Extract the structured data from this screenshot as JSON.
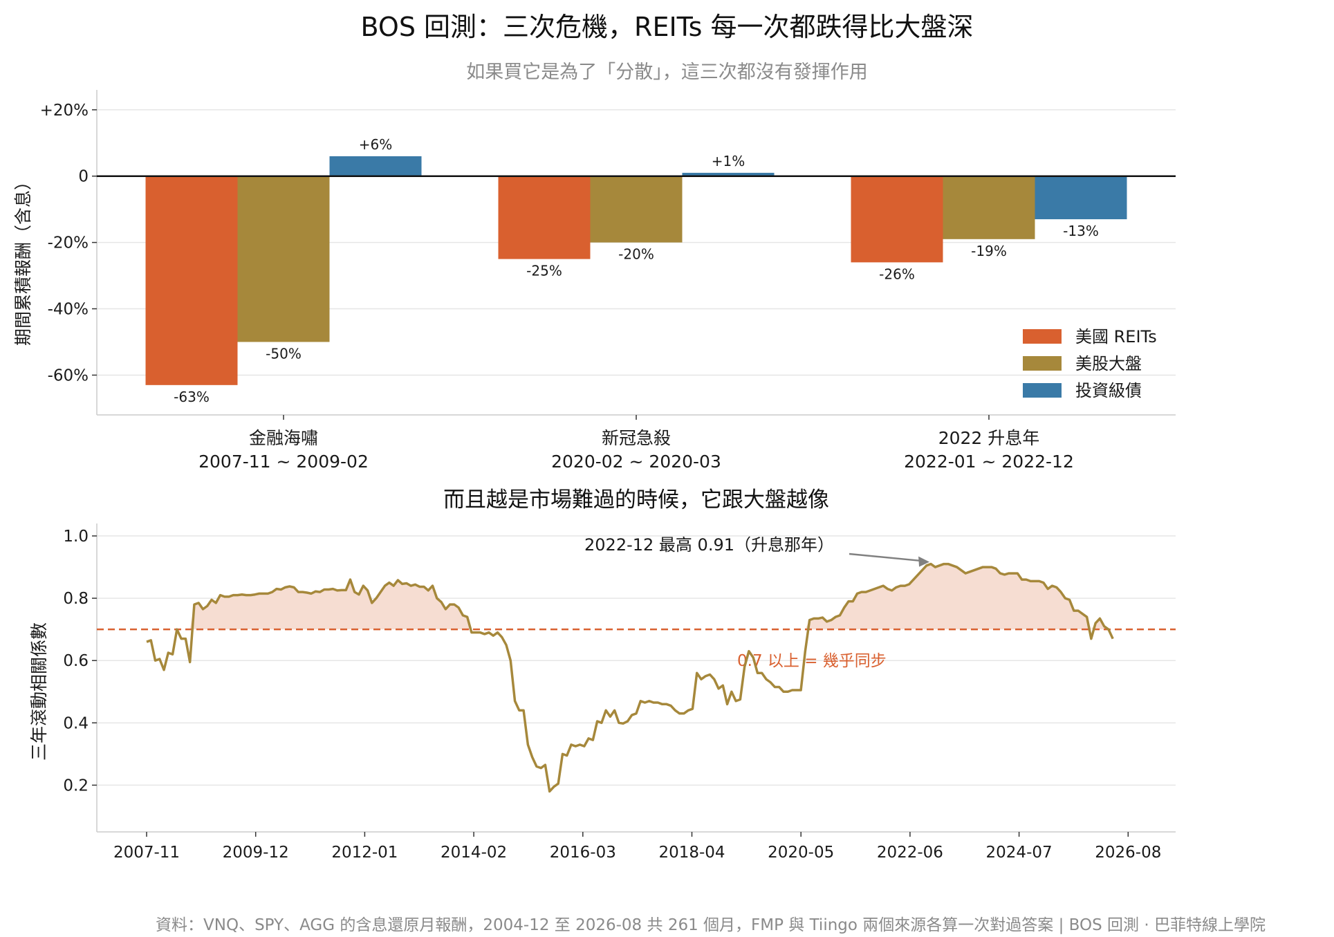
{
  "title": "BOS 回測：三次危機，REITs 每一次都跌得比大盤深",
  "subtitle": "如果買它是為了「分散」，這三次都沒有發揮作用",
  "footer": "資料：VNQ、SPY、AGG 的含息還原月報酬，2004-12 至 2026-08 共 261 個月，FMP 與 Tiingo 兩個來源各算一次對過答案 | BOS 回測 ·   巴菲特線上學院",
  "chart_data": [
    {
      "type": "bar",
      "ylabel": "期間累積報酬（含息）",
      "ylim": [
        -72,
        26
      ],
      "yticks": [
        20,
        0,
        -20,
        -40,
        -60
      ],
      "ytick_labels": [
        "+20%",
        "0",
        "-20%",
        "-40%",
        "-60%"
      ],
      "categories": [
        {
          "name": "金融海嘯",
          "period": "2007-11 ~ 2009-02"
        },
        {
          "name": "新冠急殺",
          "period": "2020-02 ~ 2020-03"
        },
        {
          "name": "2022 升息年",
          "period": "2022-01 ~ 2022-12"
        }
      ],
      "series": [
        {
          "name": "美國 REITs",
          "color": "#d9602f",
          "values": [
            -63,
            -25,
            -26
          ],
          "labels": [
            "-63%",
            "-25%",
            "-26%"
          ]
        },
        {
          "name": "美股大盤",
          "color": "#a6883b",
          "values": [
            -50,
            -20,
            -19
          ],
          "labels": [
            "-50%",
            "-20%",
            "-19%"
          ]
        },
        {
          "name": "投資級債",
          "color": "#3a7aa7",
          "values": [
            6,
            1,
            -13
          ],
          "labels": [
            "+6%",
            "+1%",
            "-13%"
          ]
        }
      ],
      "legend_position": "lower-right",
      "grid": true
    },
    {
      "type": "line",
      "title": "而且越是市場難過的時候，它跟大盤越像",
      "ylabel": "三年滾動相關係數",
      "ylim": [
        0.05,
        1.04
      ],
      "yticks": [
        0.2,
        0.4,
        0.6,
        0.8,
        1.0
      ],
      "ytick_labels": [
        "0.2",
        "0.4",
        "0.6",
        "0.8",
        "1.0"
      ],
      "x_tick_labels": [
        "2007-11",
        "2009-12",
        "2012-01",
        "2014-02",
        "2016-03",
        "2018-04",
        "2020-05",
        "2022-06",
        "2024-07",
        "2026-08"
      ],
      "line_color": "#a6883b",
      "fill_color": "#f6ddd2",
      "threshold": {
        "value": 0.7,
        "label": "0.7 以上 = 幾乎同步",
        "color": "#d9602f"
      },
      "annotation": {
        "text": "2022-12 最高 0.91（升息那年）",
        "x": "2022-12",
        "y": 0.91
      },
      "grid": true,
      "series": [
        {
          "start": "2007-11",
          "step": "1 month",
          "values": [
            0.66,
            0.665,
            0.6,
            0.605,
            0.57,
            0.625,
            0.62,
            0.7,
            0.67,
            0.67,
            0.595,
            0.78,
            0.785,
            0.765,
            0.775,
            0.795,
            0.785,
            0.81,
            0.805,
            0.805,
            0.81,
            0.81,
            0.812,
            0.81,
            0.81,
            0.812,
            0.815,
            0.815,
            0.815,
            0.82,
            0.83,
            0.828,
            0.835,
            0.838,
            0.835,
            0.82,
            0.82,
            0.818,
            0.815,
            0.822,
            0.82,
            0.828,
            0.828,
            0.83,
            0.825,
            0.826,
            0.826,
            0.86,
            0.82,
            0.812,
            0.84,
            0.825,
            0.785,
            0.8,
            0.82,
            0.84,
            0.85,
            0.84,
            0.858,
            0.846,
            0.848,
            0.84,
            0.844,
            0.837,
            0.837,
            0.825,
            0.84,
            0.8,
            0.788,
            0.765,
            0.78,
            0.78,
            0.77,
            0.745,
            0.74,
            0.69,
            0.69,
            0.69,
            0.685,
            0.69,
            0.68,
            0.69,
            0.675,
            0.65,
            0.6,
            0.47,
            0.44,
            0.44,
            0.33,
            0.29,
            0.26,
            0.255,
            0.265,
            0.18,
            0.195,
            0.205,
            0.3,
            0.295,
            0.33,
            0.325,
            0.33,
            0.325,
            0.35,
            0.345,
            0.405,
            0.4,
            0.44,
            0.42,
            0.44,
            0.4,
            0.398,
            0.405,
            0.425,
            0.43,
            0.47,
            0.465,
            0.47,
            0.465,
            0.465,
            0.46,
            0.46,
            0.455,
            0.44,
            0.43,
            0.43,
            0.44,
            0.445,
            0.56,
            0.54,
            0.55,
            0.555,
            0.54,
            0.51,
            0.52,
            0.46,
            0.5,
            0.47,
            0.475,
            0.58,
            0.63,
            0.61,
            0.56,
            0.56,
            0.54,
            0.53,
            0.515,
            0.515,
            0.5,
            0.5,
            0.505,
            0.505,
            0.505,
            0.63,
            0.73,
            0.735,
            0.735,
            0.738,
            0.725,
            0.73,
            0.74,
            0.745,
            0.77,
            0.79,
            0.79,
            0.815,
            0.82,
            0.82,
            0.825,
            0.83,
            0.835,
            0.84,
            0.83,
            0.825,
            0.835,
            0.84,
            0.84,
            0.845,
            0.86,
            0.875,
            0.89,
            0.905,
            0.91,
            0.9,
            0.905,
            0.91,
            0.91,
            0.905,
            0.9,
            0.89,
            0.88,
            0.885,
            0.89,
            0.895,
            0.9,
            0.9,
            0.9,
            0.895,
            0.88,
            0.876,
            0.88,
            0.88,
            0.88,
            0.86,
            0.86,
            0.855,
            0.855,
            0.855,
            0.85,
            0.83,
            0.84,
            0.835,
            0.82,
            0.8,
            0.795,
            0.76,
            0.76,
            0.75,
            0.74,
            0.67,
            0.72,
            0.735,
            0.71,
            0.7,
            0.67
          ]
        }
      ]
    }
  ]
}
